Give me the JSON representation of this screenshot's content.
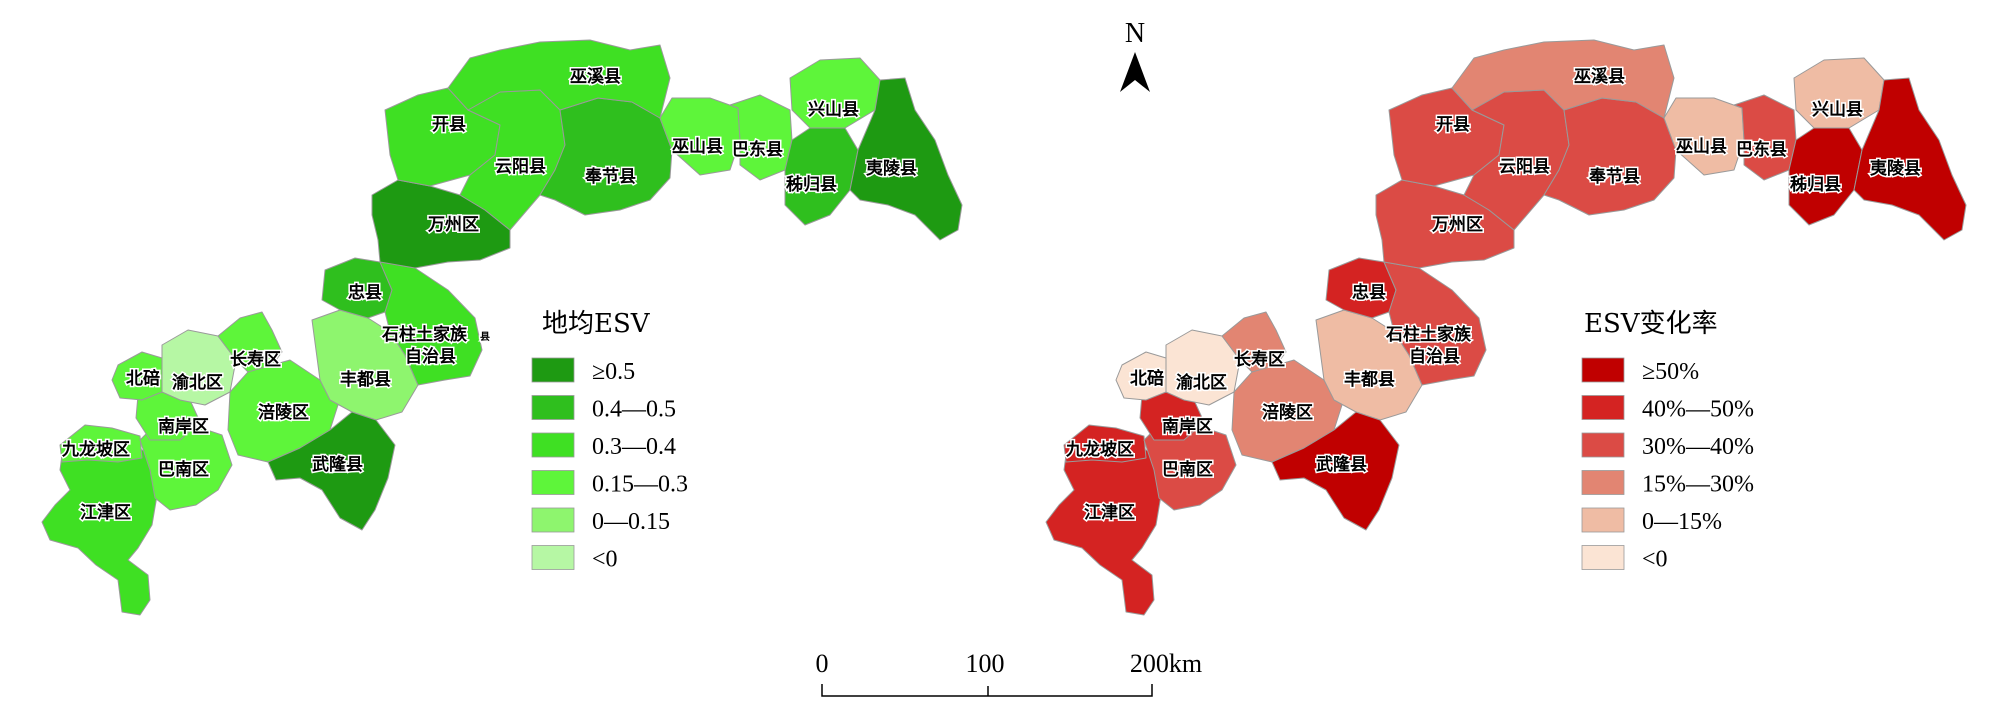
{
  "left_map": {
    "legend_title": "地均ESV",
    "legend_items": [
      {
        "label": "≥0.5",
        "color": "#1e9a12"
      },
      {
        "label": "0.4—0.5",
        "color": "#2fbf1e"
      },
      {
        "label": "0.3—0.4",
        "color": "#3fe023"
      },
      {
        "label": "0.15—0.3",
        "color": "#5ef53a"
      },
      {
        "label": "0—0.15",
        "color": "#8ef56e"
      },
      {
        "label": "<0",
        "color": "#b6f7a4"
      }
    ],
    "county_classes": {
      "jiangjin": 2,
      "jiulongpo": 3,
      "banan": 3,
      "nanan": 3,
      "beibei": 3,
      "yubei": 5,
      "changshou": 3,
      "fuling": 3,
      "fengdu": 4,
      "wulong": 0,
      "zhongxian": 1,
      "shizhu": 2,
      "wanzhou": 0,
      "kaixian": 2,
      "yunyang": 2,
      "fengjie": 1,
      "wuxi": 2,
      "wushan": 3,
      "badong": 3,
      "xingshan": 3,
      "zigui": 1,
      "yiling": 0
    }
  },
  "right_map": {
    "legend_title": "ESV变化率",
    "legend_items": [
      {
        "label": "≥50%",
        "color": "#c00000"
      },
      {
        "label": "40%—50%",
        "color": "#d42322"
      },
      {
        "label": "30%—40%",
        "color": "#db4b45"
      },
      {
        "label": "15%—30%",
        "color": "#e28572"
      },
      {
        "label": "0—15%",
        "color": "#efbca4"
      },
      {
        "label": "<0",
        "color": "#fbe4d4"
      }
    ],
    "county_classes": {
      "jiangjin": 1,
      "jiulongpo": 1,
      "banan": 2,
      "nanan": 1,
      "beibei": 5,
      "yubei": 5,
      "changshou": 3,
      "fuling": 3,
      "fengdu": 4,
      "wulong": 0,
      "zhongxian": 1,
      "shizhu": 2,
      "wanzhou": 2,
      "kaixian": 2,
      "yunyang": 2,
      "fengjie": 2,
      "wuxi": 3,
      "wushan": 4,
      "badong": 2,
      "xingshan": 4,
      "zigui": 0,
      "yiling": 0
    }
  },
  "county_labels": {
    "jiangjin": "江津区",
    "jiulongpo": "九龙坡区",
    "banan": "巴南区",
    "nanan": "南岸区",
    "beibei": "北碚",
    "yubei": "渝北区",
    "changshou": "长寿区",
    "fuling": "涪陵区",
    "fengdu": "丰都县",
    "wulong": "武隆县",
    "zhongxian": "忠县",
    "shizhu_1": "石柱土家族",
    "shizhu_2": "自治县",
    "shizhu_suffix": "县",
    "wanzhou": "万州区",
    "kaixian": "开县",
    "yunyang": "云阳县",
    "fengjie": "奉节县",
    "wuxi": "巫溪县",
    "wushan": "巫山县",
    "badong": "巴东县",
    "xingshan": "兴山县",
    "zigui": "秭归县",
    "yiling": "夷陵县"
  },
  "north_arrow": {
    "label": "N"
  },
  "scale_bar": {
    "label_0": "0",
    "label_mid": "100",
    "label_end": "200km"
  }
}
